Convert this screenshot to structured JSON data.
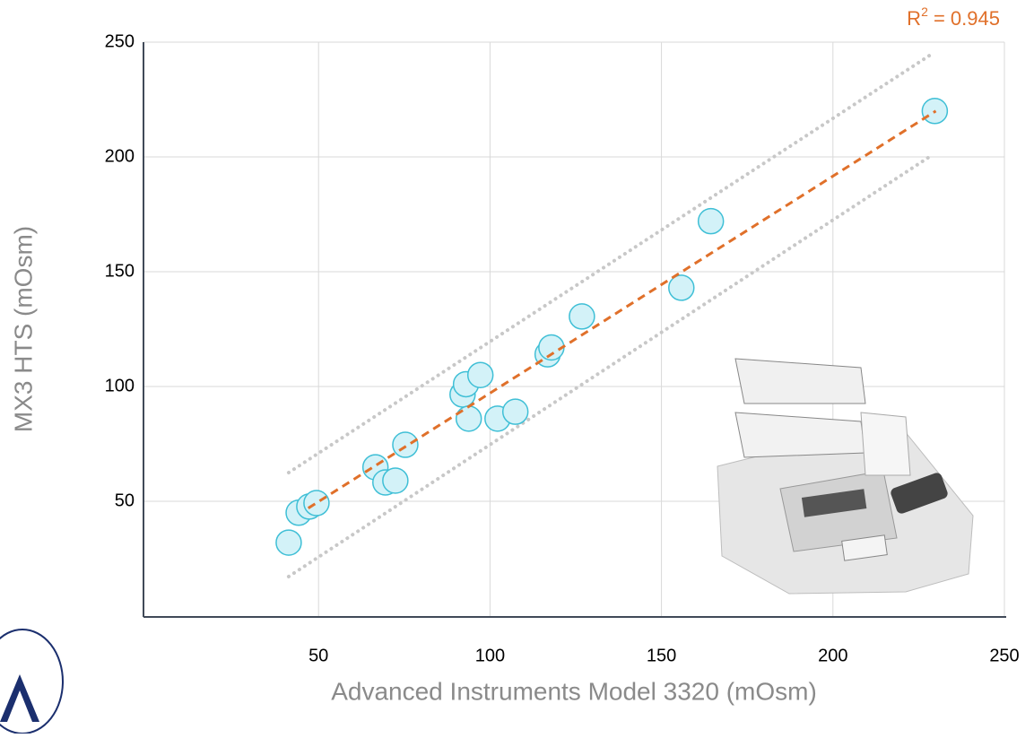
{
  "chart_data": {
    "type": "scatter",
    "x_label": "Advanced Instruments Model 3320 (mOsm)",
    "y_label": "MX3 HTS (mOsm)",
    "annotation": {
      "base": "R",
      "sup": "2",
      "rest": " = 0.945",
      "color": "#e0702a"
    },
    "xlim": [
      0,
      250
    ],
    "ylim": [
      0,
      250
    ],
    "xticks": [
      50,
      100,
      150,
      200,
      250
    ],
    "yticks": [
      50,
      100,
      150,
      200,
      250
    ],
    "grid": true,
    "marker_fill": "#d3f2f8",
    "marker_stroke": "#3fbfd6",
    "x": [
      41.3,
      44.2,
      47.3,
      49.4,
      66.6,
      69.5,
      72.4,
      75.3,
      92,
      93,
      93.8,
      97.2,
      102.2,
      107.4,
      116.8,
      117.9,
      126.8,
      155.8,
      164.4,
      229.7
    ],
    "values": [
      32,
      45,
      47.7,
      49.2,
      64.8,
      58.2,
      59,
      74.6,
      96.5,
      101,
      86,
      105,
      86,
      89,
      114,
      117,
      130.5,
      143,
      172,
      220
    ],
    "fit_line": {
      "x": [
        47,
        230
      ],
      "y": [
        47,
        220
      ],
      "color": "#e0702a"
    },
    "band_upper": {
      "x": [
        41.3,
        228.9
      ],
      "y": [
        62.5,
        244.9
      ],
      "color": "#c8c8c8"
    },
    "band_lower": {
      "x": [
        41.3,
        228.9
      ],
      "y": [
        17.2,
        200.8
      ],
      "color": "#c8c8c8"
    }
  }
}
